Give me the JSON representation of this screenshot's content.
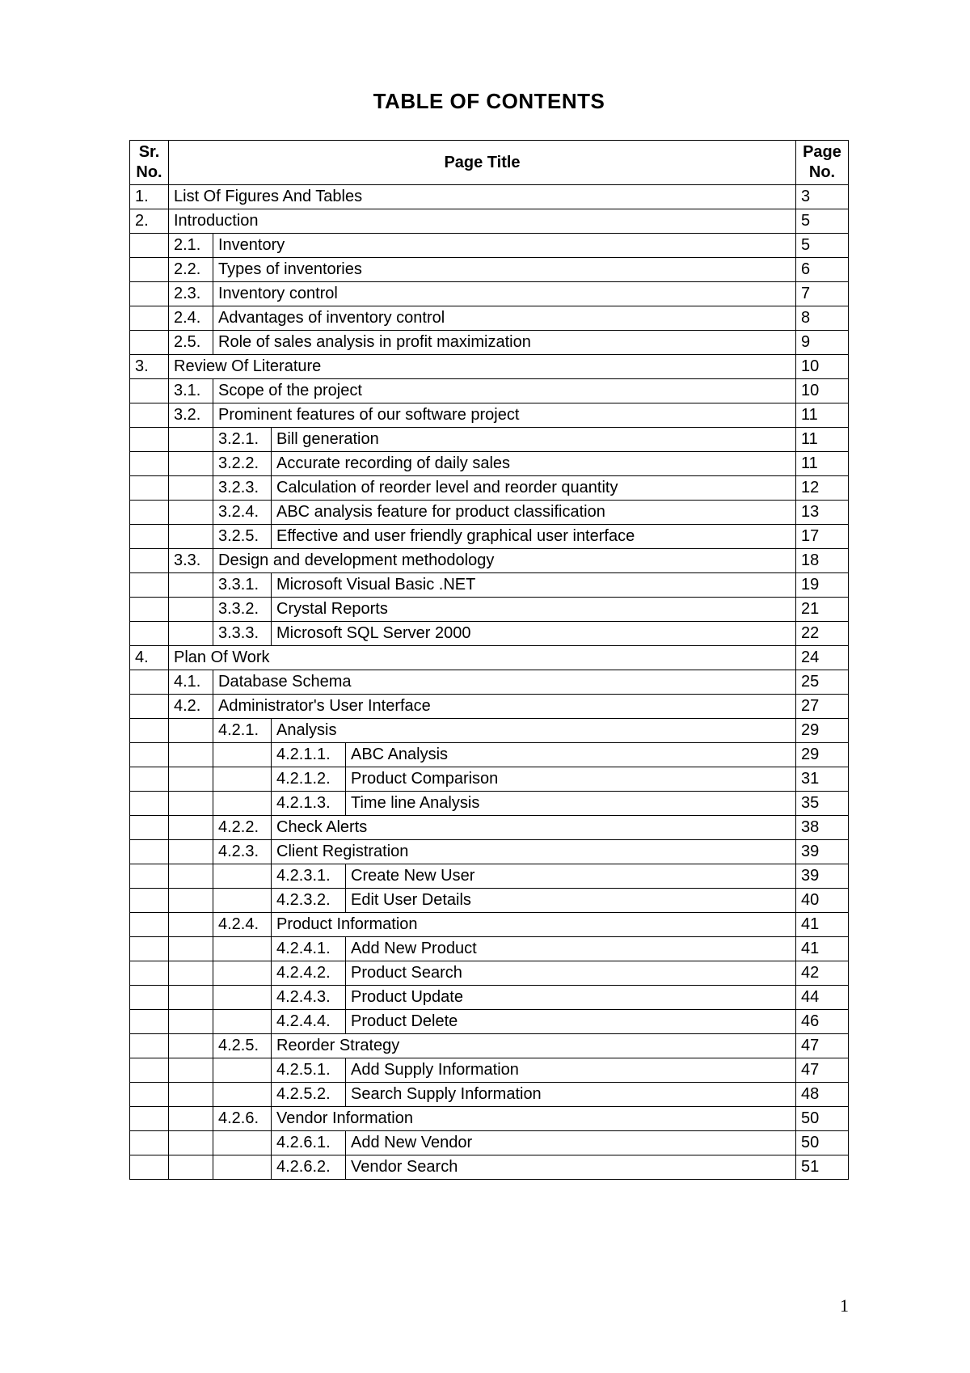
{
  "title": "TABLE OF CONTENTS",
  "headers": {
    "sr": "Sr. No.",
    "title": "Page Title",
    "page": "Page No."
  },
  "rows": [
    {
      "sr": "1.",
      "l1": "",
      "l2": "",
      "l3": "",
      "t": "List Of Figures And Tables",
      "p": "3",
      "span": 1
    },
    {
      "sr": "2.",
      "l1": "",
      "l2": "",
      "l3": "",
      "t": "Introduction",
      "p": "5",
      "span": 1
    },
    {
      "sr": "",
      "l1": "2.1.",
      "l2": "",
      "l3": "",
      "t": "Inventory",
      "p": "5",
      "span": 2
    },
    {
      "sr": "",
      "l1": "2.2.",
      "l2": "",
      "l3": "",
      "t": "Types of inventories",
      "p": "6",
      "span": 2
    },
    {
      "sr": "",
      "l1": "2.3.",
      "l2": "",
      "l3": "",
      "t": "Inventory control",
      "p": "7",
      "span": 2
    },
    {
      "sr": "",
      "l1": "2.4.",
      "l2": "",
      "l3": "",
      "t": "Advantages of inventory control",
      "p": "8",
      "span": 2
    },
    {
      "sr": "",
      "l1": "2.5.",
      "l2": "",
      "l3": "",
      "t": "Role of sales analysis in profit maximization",
      "p": "9",
      "span": 2
    },
    {
      "sr": "3.",
      "l1": "",
      "l2": "",
      "l3": "",
      "t": "Review Of Literature",
      "p": "10",
      "span": 1
    },
    {
      "sr": "",
      "l1": "3.1.",
      "l2": "",
      "l3": "",
      "t": "Scope of the project",
      "p": "10",
      "span": 2
    },
    {
      "sr": "",
      "l1": "3.2.",
      "l2": "",
      "l3": "",
      "t": "Prominent features of our software project",
      "p": "11",
      "span": 2
    },
    {
      "sr": "",
      "l1": "",
      "l2": "3.2.1.",
      "l3": "",
      "t": "Bill generation",
      "p": "11",
      "span": 3
    },
    {
      "sr": "",
      "l1": "",
      "l2": "3.2.2.",
      "l3": "",
      "t": "Accurate recording of daily sales",
      "p": "11",
      "span": 3
    },
    {
      "sr": "",
      "l1": "",
      "l2": "3.2.3.",
      "l3": "",
      "t": "Calculation of reorder level and reorder quantity",
      "p": "12",
      "span": 3,
      "ml": true
    },
    {
      "sr": "",
      "l1": "",
      "l2": "3.2.4.",
      "l3": "",
      "t": "ABC analysis feature for product classification",
      "p": "13",
      "span": 3
    },
    {
      "sr": "",
      "l1": "",
      "l2": "3.2.5.",
      "l3": "",
      "t": "Effective and user friendly graphical user interface",
      "p": "17",
      "span": 3,
      "ml": true
    },
    {
      "sr": "",
      "l1": "3.3.",
      "l2": "",
      "l3": "",
      "t": "Design and development methodology",
      "p": "18",
      "span": 2
    },
    {
      "sr": "",
      "l1": "",
      "l2": "3.3.1.",
      "l3": "",
      "t": "Microsoft Visual Basic .NET",
      "p": "19",
      "span": 3
    },
    {
      "sr": "",
      "l1": "",
      "l2": "3.3.2.",
      "l3": "",
      "t": "Crystal Reports",
      "p": "21",
      "span": 3
    },
    {
      "sr": "",
      "l1": "",
      "l2": "3.3.3.",
      "l3": "",
      "t": "Microsoft SQL Server 2000",
      "p": "22",
      "span": 3
    },
    {
      "sr": "4.",
      "l1": "",
      "l2": "",
      "l3": "",
      "t": "Plan Of Work",
      "p": "24",
      "span": 1
    },
    {
      "sr": "",
      "l1": "4.1.",
      "l2": "",
      "l3": "",
      "t": "Database Schema",
      "p": "25",
      "span": 2
    },
    {
      "sr": "",
      "l1": "4.2.",
      "l2": "",
      "l3": "",
      "t": "Administrator's User Interface",
      "p": "27",
      "span": 2
    },
    {
      "sr": "",
      "l1": "",
      "l2": "4.2.1.",
      "l3": "",
      "t": "Analysis",
      "p": "29",
      "span": 3
    },
    {
      "sr": "",
      "l1": "",
      "l2": "",
      "l3": "4.2.1.1.",
      "t": "ABC Analysis",
      "p": "29",
      "span": 4
    },
    {
      "sr": "",
      "l1": "",
      "l2": "",
      "l3": "4.2.1.2.",
      "t": "Product Comparison",
      "p": "31",
      "span": 4
    },
    {
      "sr": "",
      "l1": "",
      "l2": "",
      "l3": "4.2.1.3.",
      "t": "Time line Analysis",
      "p": "35",
      "span": 4
    },
    {
      "sr": "",
      "l1": "",
      "l2": "4.2.2.",
      "l3": "",
      "t": "Check Alerts",
      "p": "38",
      "span": 3
    },
    {
      "sr": "",
      "l1": "",
      "l2": "4.2.3.",
      "l3": "",
      "t": "Client Registration",
      "p": "39",
      "span": 3
    },
    {
      "sr": "",
      "l1": "",
      "l2": "",
      "l3": "4.2.3.1.",
      "t": "Create New User",
      "p": "39",
      "span": 4
    },
    {
      "sr": "",
      "l1": "",
      "l2": "",
      "l3": "4.2.3.2.",
      "t": "Edit User Details",
      "p": "40",
      "span": 4
    },
    {
      "sr": "",
      "l1": "",
      "l2": "4.2.4.",
      "l3": "",
      "t": "Product Information",
      "p": "41",
      "span": 3
    },
    {
      "sr": "",
      "l1": "",
      "l2": "",
      "l3": "4.2.4.1.",
      "t": "Add New Product",
      "p": "41",
      "span": 4
    },
    {
      "sr": "",
      "l1": "",
      "l2": "",
      "l3": "4.2.4.2.",
      "t": "Product Search",
      "p": "42",
      "span": 4
    },
    {
      "sr": "",
      "l1": "",
      "l2": "",
      "l3": "4.2.4.3.",
      "t": "Product Update",
      "p": "44",
      "span": 4
    },
    {
      "sr": "",
      "l1": "",
      "l2": "",
      "l3": "4.2.4.4.",
      "t": "Product Delete",
      "p": "46",
      "span": 4
    },
    {
      "sr": "",
      "l1": "",
      "l2": "4.2.5.",
      "l3": "",
      "t": "Reorder Strategy",
      "p": "47",
      "span": 3
    },
    {
      "sr": "",
      "l1": "",
      "l2": "",
      "l3": "4.2.5.1.",
      "t": "Add Supply Information",
      "p": "47",
      "span": 4
    },
    {
      "sr": "",
      "l1": "",
      "l2": "",
      "l3": "4.2.5.2.",
      "t": "Search Supply Information",
      "p": "48",
      "span": 4
    },
    {
      "sr": "",
      "l1": "",
      "l2": "4.2.6.",
      "l3": "",
      "t": "Vendor Information",
      "p": "50",
      "span": 3
    },
    {
      "sr": "",
      "l1": "",
      "l2": "",
      "l3": "4.2.6.1.",
      "t": "Add New Vendor",
      "p": "50",
      "span": 4
    },
    {
      "sr": "",
      "l1": "",
      "l2": "",
      "l3": "4.2.6.2.",
      "t": "Vendor Search",
      "p": "51",
      "span": 4
    }
  ],
  "pageNumber": "1"
}
